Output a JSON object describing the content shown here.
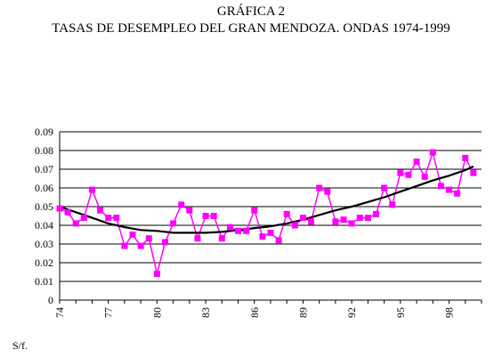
{
  "chart_data": {
    "type": "line",
    "title": "GRÁFICA 2",
    "subtitle": "TASAS DE DESEMPLEO DEL GRAN MENDOZA. ONDAS 1974-1999",
    "xlabel": "",
    "ylabel": "",
    "ylim": [
      0,
      0.09
    ],
    "yticks": [
      "0",
      "0.01",
      "0.02",
      "0.03",
      "0.04",
      "0.05",
      "0.06",
      "0.07",
      "0.08",
      "0.09"
    ],
    "xticks": [
      "74",
      "77",
      "80",
      "83",
      "86",
      "89",
      "92",
      "95",
      "98"
    ],
    "xlim": [
      74,
      100
    ],
    "grid": "horizontal",
    "legend": "none",
    "series": [
      {
        "name": "",
        "style": "markers",
        "color": "#ff00ff",
        "x": [
          74,
          74.5,
          75,
          75.5,
          76,
          76.5,
          77,
          77.5,
          78,
          78.5,
          79,
          79.5,
          80,
          80.5,
          81,
          81.5,
          82,
          82.5,
          83,
          83.5,
          84,
          84.5,
          85,
          85.5,
          86,
          86.5,
          87,
          87.5,
          88,
          88.5,
          89,
          89.5,
          90,
          90.5,
          91,
          91.5,
          92,
          92.5,
          93,
          93.5,
          94,
          94.5,
          95,
          95.5,
          96,
          96.5,
          97,
          97.5,
          98,
          98.5,
          99,
          99.5
        ],
        "y": [
          0.049,
          0.047,
          0.041,
          0.044,
          0.059,
          0.048,
          0.044,
          0.044,
          0.029,
          0.035,
          0.029,
          0.033,
          0.014,
          0.031,
          0.041,
          0.051,
          0.048,
          0.033,
          0.045,
          0.045,
          0.033,
          0.039,
          0.037,
          0.037,
          0.048,
          0.034,
          0.036,
          0.032,
          0.046,
          0.04,
          0.044,
          0.042,
          0.06,
          0.058,
          0.042,
          0.043,
          0.041,
          0.044,
          0.044,
          0.046,
          0.06,
          0.051,
          0.068,
          0.067,
          0.074,
          0.066,
          0.079,
          0.061,
          0.059,
          0.057,
          0.076,
          0.068
        ]
      },
      {
        "name": "",
        "style": "trendline",
        "color": "#000000",
        "x": [
          74,
          75,
          76,
          77,
          78,
          79,
          80,
          81,
          82,
          83,
          84,
          85,
          86,
          87,
          88,
          89,
          90,
          91,
          92,
          93,
          94,
          95,
          96,
          97,
          98,
          99,
          99.5
        ],
        "y": [
          0.05,
          0.047,
          0.044,
          0.041,
          0.039,
          0.0375,
          0.037,
          0.036,
          0.036,
          0.036,
          0.0365,
          0.0375,
          0.0385,
          0.0395,
          0.041,
          0.043,
          0.0455,
          0.048,
          0.05,
          0.0525,
          0.055,
          0.058,
          0.061,
          0.064,
          0.0665,
          0.0695,
          0.0715
        ]
      }
    ]
  },
  "footer": {
    "note": "S/f."
  }
}
